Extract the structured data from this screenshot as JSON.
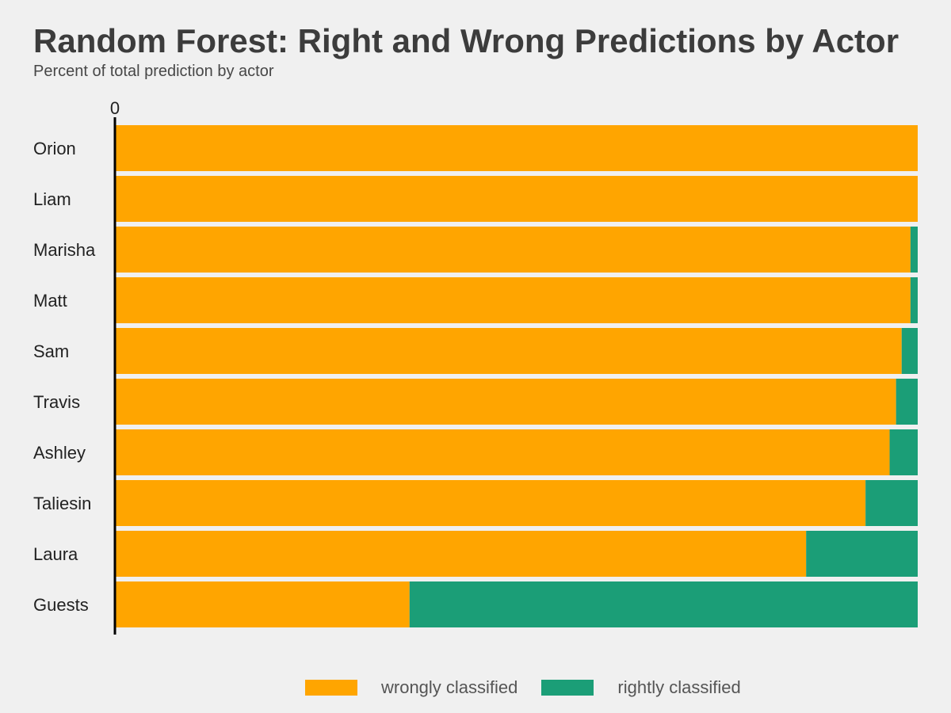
{
  "chart_data": {
    "type": "bar",
    "orientation": "horizontal",
    "stacked": true,
    "title": "Random Forest: Right and Wrong Predictions by Actor",
    "subtitle": "Percent of total prediction by actor",
    "categories": [
      "Orion",
      "Liam",
      "Marisha",
      "Matt",
      "Sam",
      "Travis",
      "Ashley",
      "Taliesin",
      "Laura",
      "Guests"
    ],
    "series": [
      {
        "name": "wrongly classified",
        "color": "#ffa500",
        "values": [
          100,
          100,
          99.1,
          99.1,
          98.0,
          97.3,
          96.5,
          93.5,
          86.1,
          36.7
        ]
      },
      {
        "name": "rightly classified",
        "color": "#1b9e77",
        "values": [
          0,
          0,
          0.9,
          0.9,
          2.0,
          2.7,
          3.5,
          6.5,
          13.9,
          63.3
        ]
      }
    ],
    "xlim": [
      0,
      100
    ],
    "x_tick_labels": [
      "0"
    ],
    "grid": false,
    "legend_position": "bottom"
  }
}
